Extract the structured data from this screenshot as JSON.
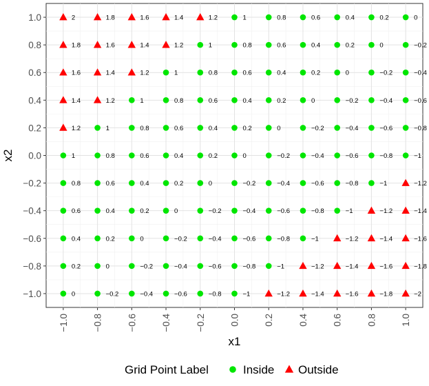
{
  "chart_data": {
    "type": "scatter",
    "xlabel": "x1",
    "ylabel": "x2",
    "xlim": [
      -1.1,
      1.1
    ],
    "ylim": [
      -1.1,
      1.1
    ],
    "grid": true,
    "legend_placement": "bottom",
    "x_ticks": [
      "-1.0",
      "-0.8",
      "-0.6",
      "-0.4",
      "-0.2",
      "0.0",
      "0.2",
      "0.4",
      "0.6",
      "0.8",
      "1.0"
    ],
    "y_ticks": [
      "-1.0",
      "-0.8",
      "-0.6",
      "-0.4",
      "-0.2",
      "0.0",
      "0.2",
      "0.4",
      "0.6",
      "0.8",
      "1.0"
    ],
    "legend": {
      "title": "Grid Point Label",
      "items": [
        {
          "label": "Inside",
          "shape": "circle",
          "color": "#00e600"
        },
        {
          "label": "Outside",
          "shape": "triangle",
          "color": "#ff0000"
        }
      ]
    },
    "grid_values": [
      -1.0,
      -0.8,
      -0.6,
      -0.4,
      -0.2,
      0.0,
      0.2,
      0.4,
      0.6,
      0.8,
      1.0
    ],
    "label_text": {
      "-2": "−2",
      "-1.8": "−1.8",
      "-1.6": "−1.6",
      "-1.4": "−1.4",
      "-1.2": "−1.2",
      "-1": "−1",
      "-0.8": "−0.8",
      "-0.6": "−0.6",
      "-0.4": "−0.4",
      "-0.2": "−0.2",
      "0": "0",
      "0.2": "0.2",
      "0.4": "0.4",
      "0.6": "0.6",
      "0.8": "0.8",
      "1": "1",
      "1.2": "1.2",
      "1.4": "1.4",
      "1.6": "1.6",
      "1.8": "1.8",
      "2": "2"
    },
    "inside_rule": "abs(x2 - x1) <= 1"
  }
}
